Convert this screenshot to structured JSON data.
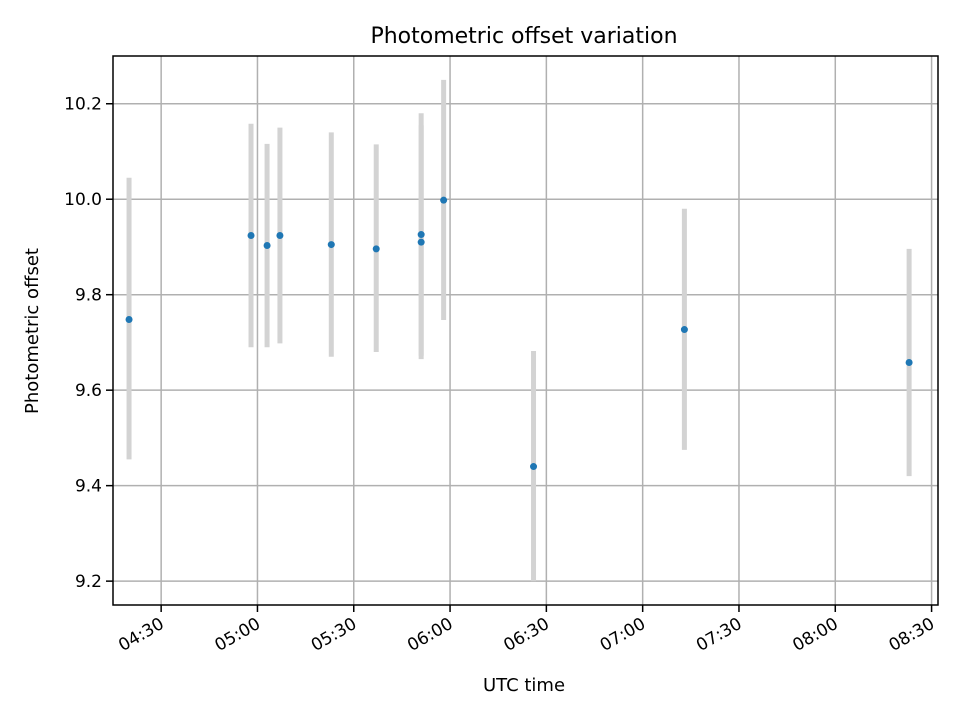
{
  "chart_data": {
    "type": "scatter",
    "title": "Photometric offset variation",
    "xlabel": "UTC time",
    "ylabel": "Photometric offset",
    "x_unit": "UTC time (HH:MM)",
    "xlim": [
      "04:15",
      "08:32"
    ],
    "ylim": [
      9.15,
      10.3
    ],
    "x_ticks": [
      "04:30",
      "05:00",
      "05:30",
      "06:00",
      "06:30",
      "07:00",
      "07:30",
      "08:00",
      "08:30"
    ],
    "y_ticks": [
      9.2,
      9.4,
      9.6,
      9.8,
      10.0,
      10.2
    ],
    "grid": true,
    "colors": {
      "point": "#1f77b4",
      "errorbar": "#d3d3d3"
    },
    "points": [
      {
        "x": "04:20",
        "y": 9.748,
        "err_low": 9.455,
        "err_high": 10.045
      },
      {
        "x": "04:58",
        "y": 9.924,
        "err_low": 9.69,
        "err_high": 10.158
      },
      {
        "x": "05:03",
        "y": 9.903,
        "err_low": 9.69,
        "err_high": 10.116
      },
      {
        "x": "05:07",
        "y": 9.924,
        "err_low": 9.698,
        "err_high": 10.15
      },
      {
        "x": "05:23",
        "y": 9.905,
        "err_low": 9.67,
        "err_high": 10.14
      },
      {
        "x": "05:37",
        "y": 9.896,
        "err_low": 9.68,
        "err_high": 10.115
      },
      {
        "x": "05:51",
        "y": 9.91,
        "err_low": 9.665,
        "err_high": 10.155
      },
      {
        "x": "05:51",
        "y": 9.926,
        "err_low": 9.672,
        "err_high": 10.18
      },
      {
        "x": "05:58",
        "y": 9.998,
        "err_low": 9.747,
        "err_high": 10.25
      },
      {
        "x": "06:26",
        "y": 9.44,
        "err_low": 9.2,
        "err_high": 9.682
      },
      {
        "x": "07:13",
        "y": 9.727,
        "err_low": 9.475,
        "err_high": 9.98
      },
      {
        "x": "08:23",
        "y": 9.658,
        "err_low": 9.42,
        "err_high": 9.896
      }
    ]
  }
}
